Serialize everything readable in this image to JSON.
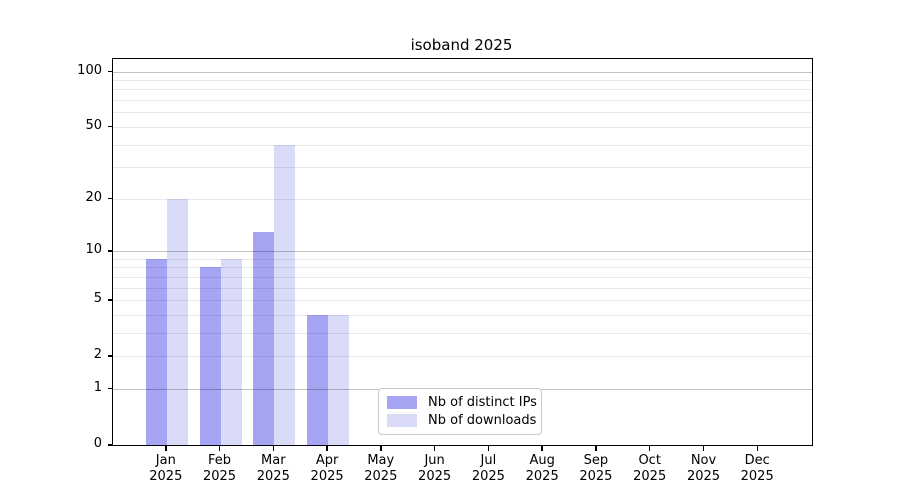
{
  "title": "isoband 2025",
  "chart_data": {
    "type": "bar",
    "title": "isoband 2025",
    "scale": "log1p",
    "grid": true,
    "categories": [
      "Jan",
      "Feb",
      "Mar",
      "Apr",
      "May",
      "Jun",
      "Jul",
      "Aug",
      "Sep",
      "Oct",
      "Nov",
      "Dec"
    ],
    "x_year_label": "2025",
    "series": [
      {
        "name": "Nb of distinct IPs",
        "color": "#a5a5f3",
        "values": [
          9,
          8,
          13,
          4,
          0,
          0,
          0,
          0,
          0,
          0,
          0,
          0
        ]
      },
      {
        "name": "Nb of downloads",
        "color": "#dadaf9",
        "values": [
          20,
          9,
          40,
          4,
          0,
          0,
          0,
          0,
          0,
          0,
          0,
          0
        ]
      }
    ],
    "y_ticks": [
      0,
      1,
      2,
      5,
      10,
      20,
      50,
      100
    ],
    "minor_gridlines": [
      2,
      3,
      4,
      5,
      6,
      7,
      8,
      9,
      20,
      30,
      40,
      50,
      60,
      70,
      80,
      90
    ],
    "major_gridlines": [
      1,
      10,
      100
    ],
    "ylim": [
      0,
      117
    ],
    "legend_position": "inside-bottom-center"
  },
  "colors": {
    "background": "#ffffff",
    "axis": "#000000",
    "minor_grid": "#ebebeb",
    "major_grid": "#c3c3c3",
    "legend_border": "#c9c9c9"
  }
}
